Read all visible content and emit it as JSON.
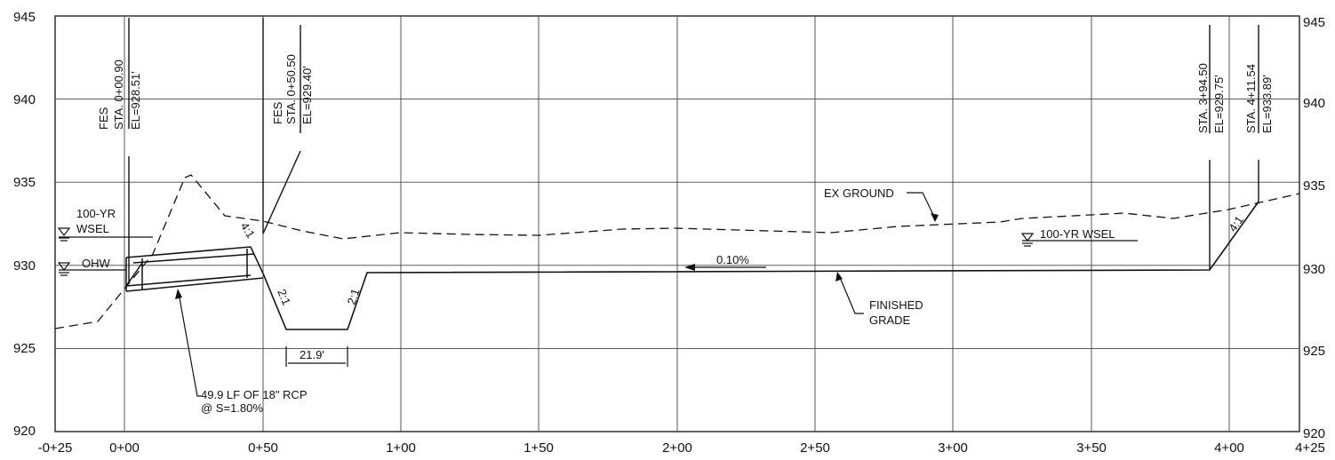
{
  "axes": {
    "y_left": [
      "920",
      "925",
      "930",
      "935",
      "940",
      "945"
    ],
    "y_right": [
      "920",
      "925",
      "930",
      "935",
      "940",
      "945"
    ],
    "x": [
      "-0+25",
      "0+00",
      "0+50",
      "1+00",
      "1+50",
      "2+00",
      "2+50",
      "3+00",
      "3+50",
      "4+00",
      "4+25"
    ]
  },
  "stations": {
    "fes_start": {
      "type": "FES",
      "sta": "STA. 0+00.90",
      "el": "EL=928.51'"
    },
    "fes_end": {
      "type": "FES",
      "sta": "STA. 0+50.50",
      "el": "EL=929.40'"
    },
    "sta_394": {
      "sta": "STA. 3+94.50",
      "el": "EL=929.75'"
    },
    "sta_411": {
      "sta": "STA. 4+11.54",
      "el": "EL=933.89'"
    }
  },
  "labels": {
    "wsel_100yr_left_line1": "100-YR",
    "wsel_100yr_left_line2": "WSEL",
    "ohw": "OHW",
    "wsel_100yr_right": "100-YR WSEL",
    "ex_ground": "EX GROUND",
    "finished_grade_line1": "FINISHED",
    "finished_grade_line2": "GRADE",
    "slope_pct": "0.10%",
    "bottom_width": "21.9'",
    "pipe_line1": "49.9 LF OF 18\" RCP",
    "pipe_line2": "@ S=1.80%",
    "slope_4to1_a": "4:1",
    "slope_2to1_a": "2:1",
    "slope_2to1_b": "2:1",
    "slope_4to1_b": "4:1"
  }
}
